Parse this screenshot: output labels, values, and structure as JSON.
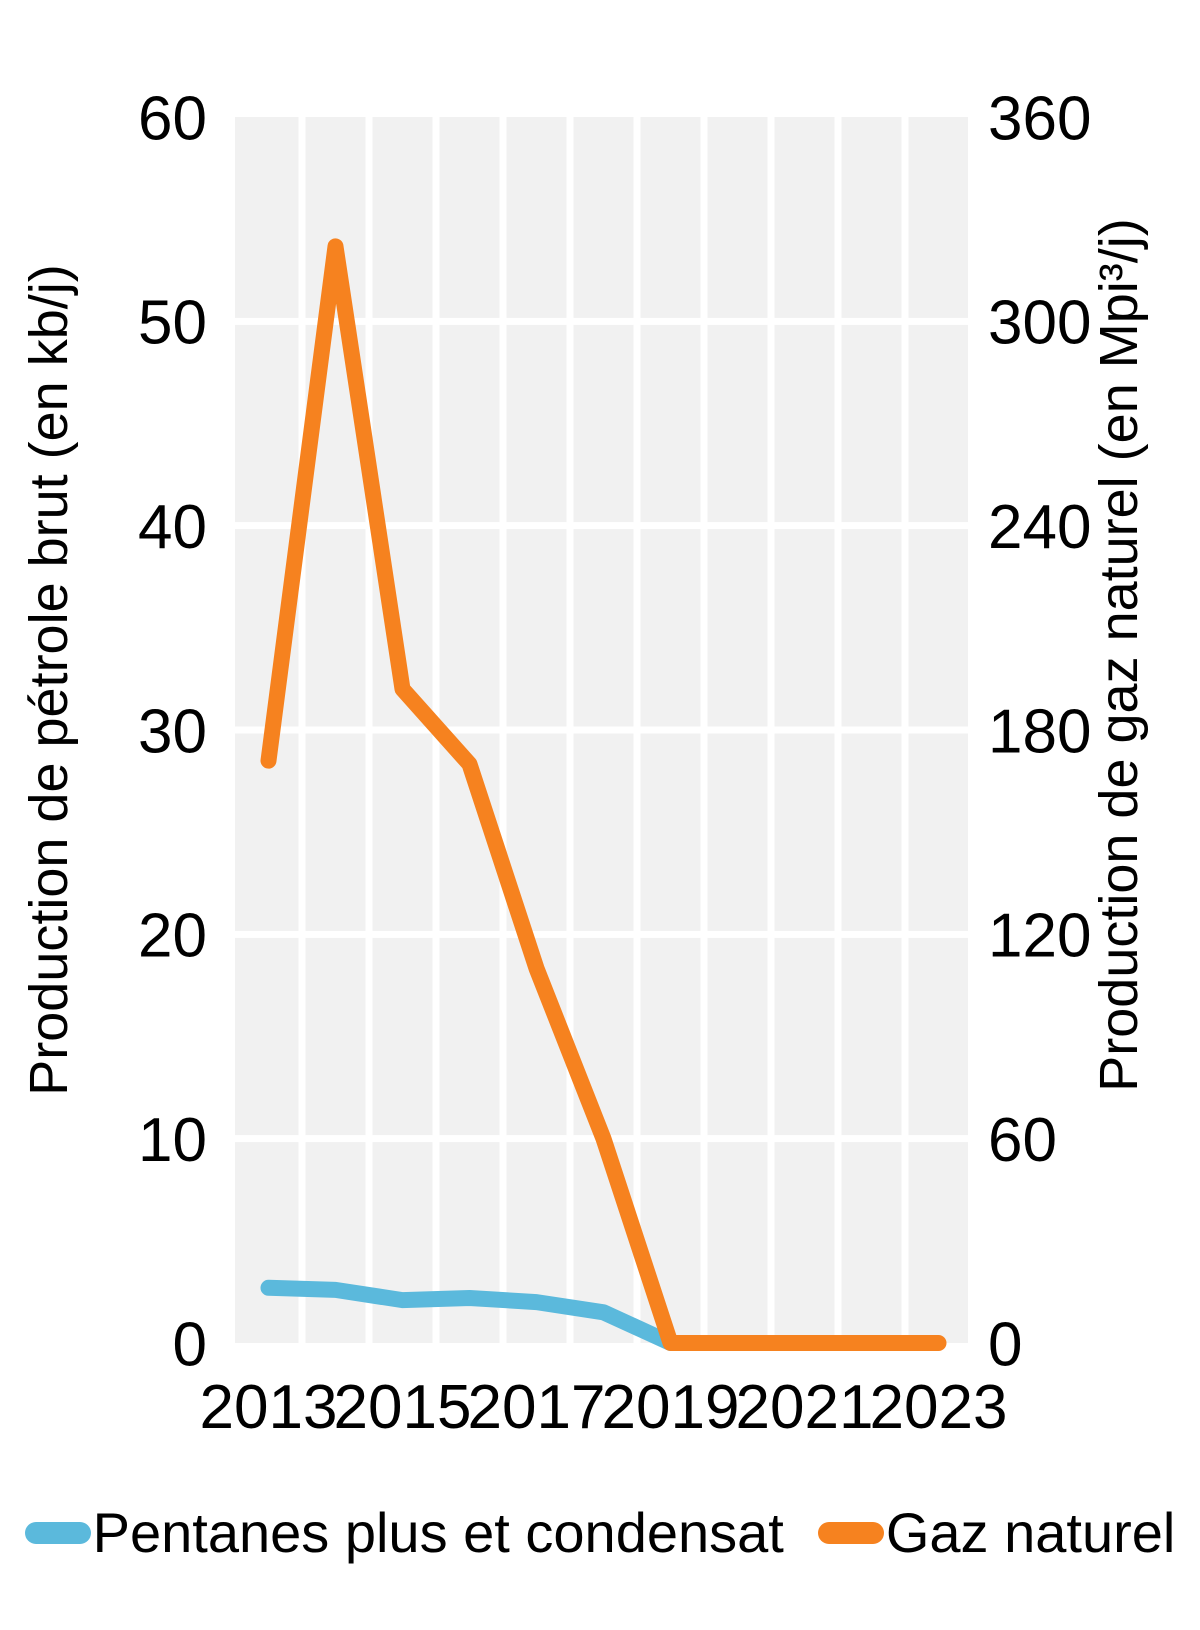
{
  "chart_data": {
    "type": "line",
    "x": [
      2013,
      2014,
      2015,
      2016,
      2017,
      2018,
      2019,
      2020,
      2021,
      2022,
      2023
    ],
    "x_tick_labels": [
      "2013",
      "2015",
      "2017",
      "2019",
      "2021",
      "2023"
    ],
    "left_axis": {
      "title": "Production de pétrole brut (en kb/j)",
      "ticks": [
        0,
        10,
        20,
        30,
        40,
        50,
        60
      ],
      "range": [
        0,
        60
      ]
    },
    "right_axis": {
      "title": "Production de gaz naturel  (en Mpi³/j)",
      "ticks": [
        0,
        60,
        120,
        180,
        240,
        300,
        360
      ],
      "range": [
        0,
        360
      ]
    },
    "series": [
      {
        "name": "Pentanes plus et condensat",
        "axis": "left",
        "unit": "kb/j",
        "color": "#5BB9DC",
        "values": [
          2.7,
          2.6,
          2.1,
          2.2,
          2.0,
          1.5,
          0,
          null,
          null,
          null,
          null
        ]
      },
      {
        "name": "Gaz naturel",
        "axis": "right",
        "unit": "Mpi³/j",
        "color": "#F6821F",
        "values": [
          171,
          322,
          192,
          170,
          110,
          60,
          0,
          0,
          0,
          0,
          0
        ]
      }
    ],
    "grid": true,
    "legend_position": "bottom",
    "plot_bg": "#F1F1F1",
    "gridline_color": "#FFFFFF"
  }
}
